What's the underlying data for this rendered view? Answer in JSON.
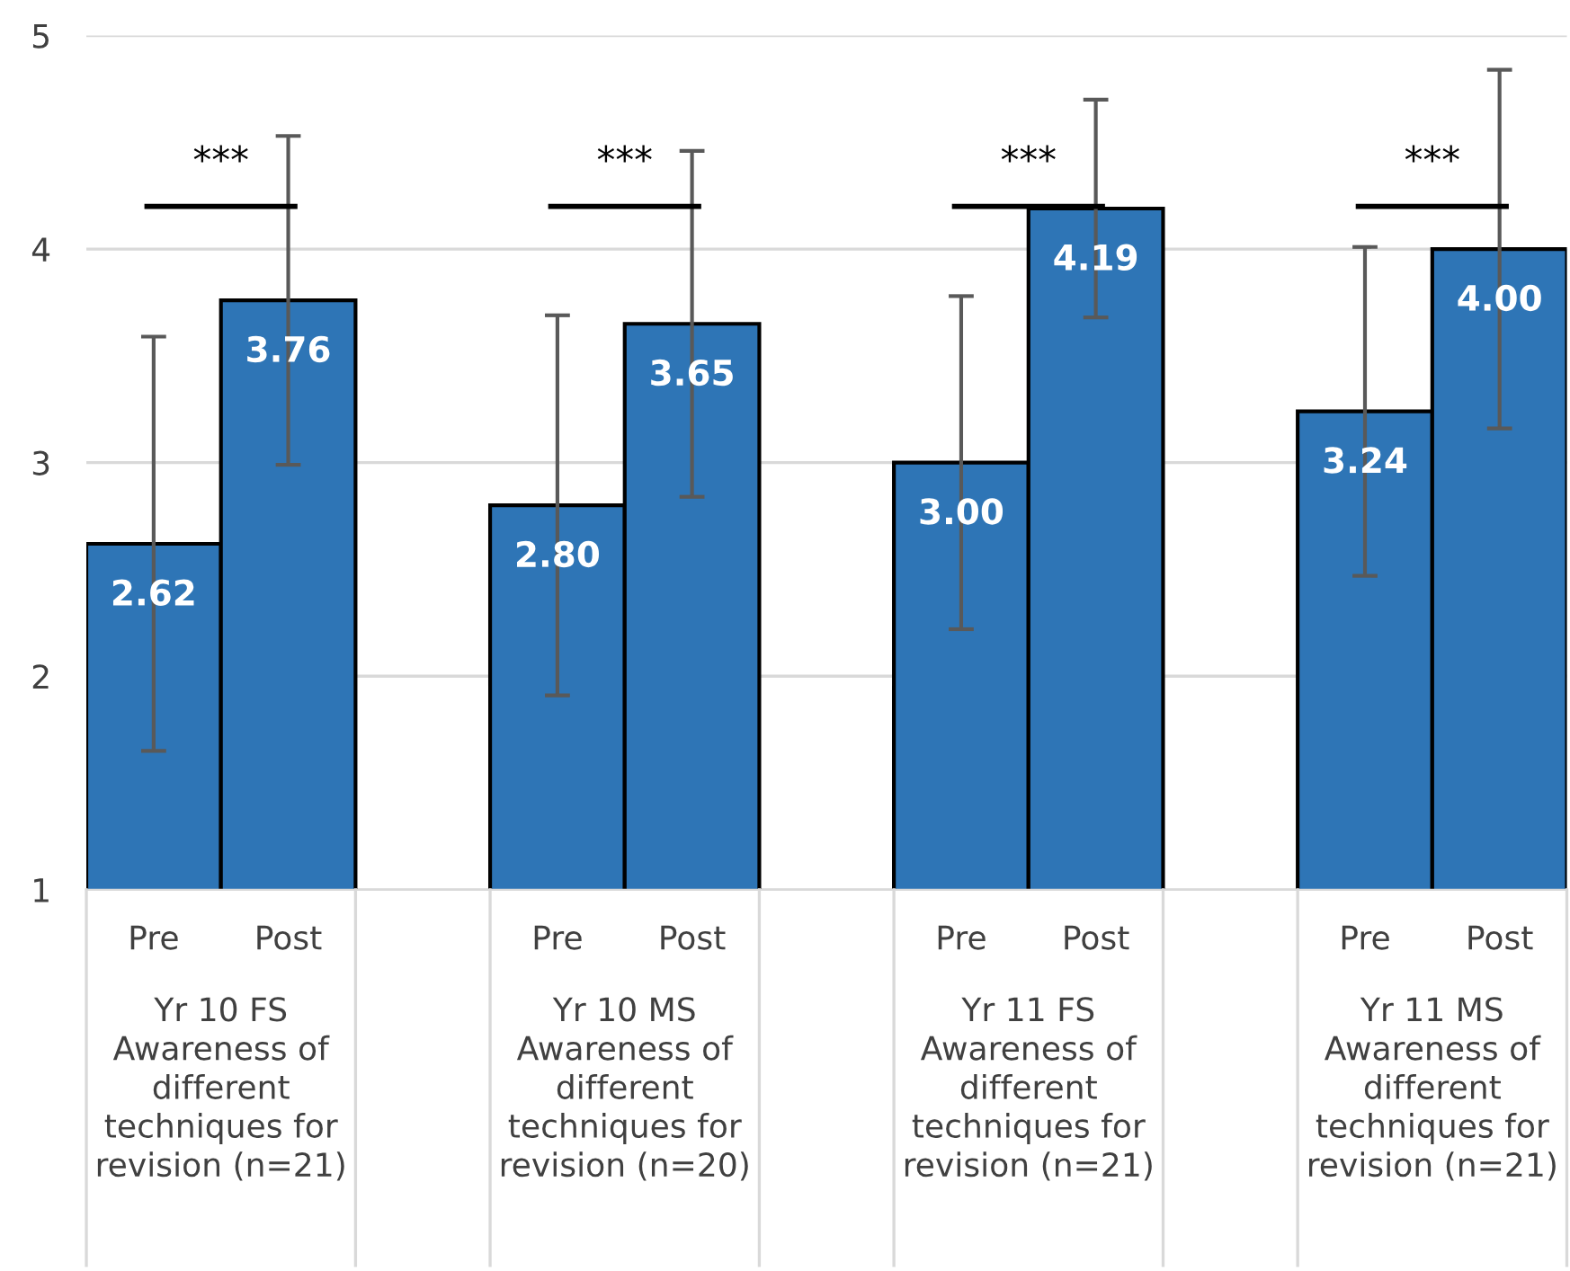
{
  "chart_data": {
    "type": "bar",
    "categories": [
      "Pre",
      "Post",
      "Pre",
      "Post",
      "Pre",
      "Post",
      "Pre",
      "Post"
    ],
    "values": [
      2.62,
      3.76,
      2.8,
      3.65,
      3.0,
      4.19,
      3.24,
      4.0
    ],
    "color": "#2e75b6",
    "errors": [
      [
        1.65,
        3.59
      ],
      [
        2.99,
        4.53
      ],
      [
        1.91,
        3.69
      ],
      [
        2.84,
        4.46
      ],
      [
        2.22,
        3.78
      ],
      [
        3.68,
        4.7
      ],
      [
        2.47,
        4.01
      ],
      [
        3.16,
        4.84
      ]
    ],
    "value_labels": [
      "2.62",
      "3.76",
      "2.80",
      "3.65",
      "3.00",
      "4.19",
      "3.24",
      "4.00"
    ],
    "ylim": [
      1,
      5
    ],
    "yticks": [
      1,
      2,
      3,
      4,
      5
    ],
    "grid": "y",
    "annotations": [
      "Yr 10 FS\nAwareness of\ndifferent\ntechniques for\nrevision (n=21)",
      "Yr 10 MS\nAwareness of\ndifferent\ntechniques for\nrevision (n=20)",
      "Yr 11 FS\nAwareness of\ndifferent\ntechniques for\nrevision (n=21)",
      "Yr 11 MS\nAwareness of\ndifferent\ntechniques for\nrevision (n=21)",
      "***",
      "***",
      "***",
      "***"
    ]
  }
}
